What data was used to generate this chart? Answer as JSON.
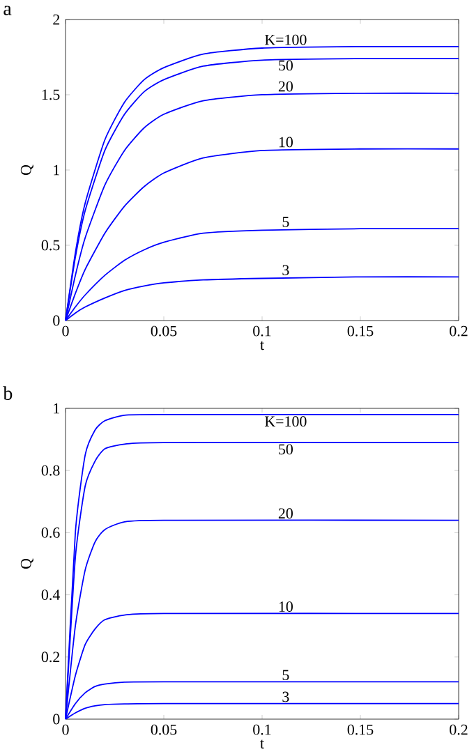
{
  "chart_data": [
    {
      "type": "line",
      "annotations": [
        "a"
      ],
      "xlabel": "t",
      "ylabel": "Q",
      "xlim": [
        0,
        0.2
      ],
      "ylim": [
        0,
        2
      ],
      "xticks": [
        0,
        0.05,
        0.1,
        0.15,
        0.2
      ],
      "yticks": [
        0,
        0.5,
        1,
        1.5,
        2
      ],
      "x": [
        0,
        0.005,
        0.01,
        0.02,
        0.03,
        0.04,
        0.05,
        0.07,
        0.1,
        0.15,
        0.2
      ],
      "series": [
        {
          "name": "K=100",
          "color": "#0000ff",
          "values": [
            0,
            0.45,
            0.78,
            1.2,
            1.45,
            1.6,
            1.68,
            1.77,
            1.81,
            1.82,
            1.82
          ]
        },
        {
          "name": "50",
          "color": "#0000ff",
          "values": [
            0,
            0.42,
            0.73,
            1.13,
            1.37,
            1.52,
            1.6,
            1.69,
            1.73,
            1.74,
            1.74
          ]
        },
        {
          "name": "20",
          "color": "#0000ff",
          "values": [
            0,
            0.3,
            0.55,
            0.9,
            1.13,
            1.28,
            1.37,
            1.46,
            1.5,
            1.51,
            1.51
          ]
        },
        {
          "name": "10",
          "color": "#0000ff",
          "values": [
            0,
            0.18,
            0.34,
            0.58,
            0.76,
            0.89,
            0.98,
            1.08,
            1.13,
            1.14,
            1.14
          ]
        },
        {
          "name": "5",
          "color": "#0000ff",
          "values": [
            0,
            0.09,
            0.17,
            0.3,
            0.4,
            0.47,
            0.52,
            0.58,
            0.6,
            0.61,
            0.61
          ]
        },
        {
          "name": "3",
          "color": "#0000ff",
          "values": [
            0,
            0.05,
            0.09,
            0.15,
            0.2,
            0.23,
            0.25,
            0.27,
            0.28,
            0.29,
            0.29
          ]
        }
      ]
    },
    {
      "type": "line",
      "annotations": [
        "b"
      ],
      "xlabel": "t",
      "ylabel": "Q",
      "xlim": [
        0,
        0.2
      ],
      "ylim": [
        0,
        1
      ],
      "xticks": [
        0,
        0.05,
        0.1,
        0.15,
        0.2
      ],
      "yticks": [
        0,
        0.2,
        0.4,
        0.6,
        0.8,
        1
      ],
      "x": [
        0,
        0.005,
        0.01,
        0.015,
        0.02,
        0.03,
        0.05,
        0.2
      ],
      "series": [
        {
          "name": "K=100",
          "color": "#0000ff",
          "values": [
            0,
            0.6,
            0.85,
            0.93,
            0.96,
            0.978,
            0.98,
            0.98
          ]
        },
        {
          "name": "50",
          "color": "#0000ff",
          "values": [
            0,
            0.52,
            0.75,
            0.83,
            0.87,
            0.885,
            0.89,
            0.89
          ]
        },
        {
          "name": "20",
          "color": "#0000ff",
          "values": [
            0,
            0.3,
            0.48,
            0.57,
            0.61,
            0.635,
            0.64,
            0.64
          ]
        },
        {
          "name": "10",
          "color": "#0000ff",
          "values": [
            0,
            0.14,
            0.24,
            0.29,
            0.32,
            0.335,
            0.34,
            0.34
          ]
        },
        {
          "name": "5",
          "color": "#0000ff",
          "values": [
            0,
            0.05,
            0.085,
            0.105,
            0.113,
            0.119,
            0.12,
            0.12
          ]
        },
        {
          "name": "3",
          "color": "#0000ff",
          "values": [
            0,
            0.02,
            0.035,
            0.043,
            0.047,
            0.049,
            0.05,
            0.05
          ]
        }
      ]
    }
  ]
}
